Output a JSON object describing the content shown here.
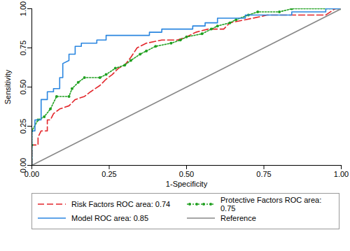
{
  "chart_data": {
    "type": "line",
    "xlabel": "1-Specificity",
    "ylabel": "Sensitivity",
    "xlim": [
      0,
      1
    ],
    "ylim": [
      0,
      1
    ],
    "xticks": [
      {
        "value": 0,
        "label": "0.00"
      },
      {
        "value": 0.25,
        "label": "0.25"
      },
      {
        "value": 0.5,
        "label": "0.50"
      },
      {
        "value": 0.75,
        "label": "0.75"
      },
      {
        "value": 1,
        "label": "1.00"
      }
    ],
    "yticks": [
      {
        "value": 0,
        "label": "0.00"
      },
      {
        "value": 0.25,
        "label": "0.25"
      },
      {
        "value": 0.5,
        "label": "0.50"
      },
      {
        "value": 0.75,
        "label": "0.75"
      },
      {
        "value": 1,
        "label": "1.00"
      }
    ],
    "grid": false,
    "legend": "bottom",
    "series": [
      {
        "name": "Risk Factors ROC area: 0.74",
        "color": "#e3262b",
        "line_style": "dashed",
        "x": [
          0,
          0,
          0.02,
          0.02,
          0.03,
          0.05,
          0.05,
          0.06,
          0.07,
          0.09,
          0.12,
          0.14,
          0.17,
          0.19,
          0.22,
          0.24,
          0.26,
          0.28,
          0.3,
          0.32,
          0.34,
          0.37,
          0.42,
          0.47,
          0.5,
          0.53,
          0.57,
          0.62,
          0.64,
          0.69,
          0.74,
          0.76,
          0.95,
          0.98,
          1
        ],
        "values": [
          0,
          0.13,
          0.13,
          0.18,
          0.22,
          0.22,
          0.29,
          0.29,
          0.33,
          0.36,
          0.38,
          0.42,
          0.44,
          0.47,
          0.51,
          0.55,
          0.58,
          0.62,
          0.64,
          0.69,
          0.75,
          0.78,
          0.8,
          0.8,
          0.82,
          0.85,
          0.87,
          0.87,
          0.91,
          0.93,
          0.95,
          0.96,
          0.96,
          1,
          1
        ]
      },
      {
        "name": "Protective Factors ROC area: 0.75",
        "color": "#20a020",
        "line_style": "dotted",
        "marker": "circle",
        "x": [
          0,
          0,
          0,
          0.02,
          0.04,
          0.06,
          0.08,
          0.12,
          0.13,
          0.15,
          0.17,
          0.22,
          0.24,
          0.27,
          0.3,
          0.32,
          0.35,
          0.37,
          0.4,
          0.45,
          0.48,
          0.5,
          0.55,
          0.58,
          0.6,
          0.64,
          0.66,
          0.7,
          0.73,
          0.8,
          0.84,
          1
        ],
        "values": [
          0,
          0.13,
          0.22,
          0.29,
          0.31,
          0.36,
          0.44,
          0.44,
          0.49,
          0.53,
          0.56,
          0.56,
          0.58,
          0.62,
          0.64,
          0.67,
          0.71,
          0.73,
          0.76,
          0.78,
          0.8,
          0.82,
          0.84,
          0.87,
          0.89,
          0.91,
          0.93,
          0.96,
          0.98,
          0.98,
          1,
          1
        ]
      },
      {
        "name": "Model ROC area: 0.85",
        "color": "#2a86e0",
        "line_style": "solid",
        "x": [
          0,
          0,
          0,
          0.01,
          0.01,
          0.03,
          0.03,
          0.05,
          0.05,
          0.07,
          0.07,
          0.09,
          0.09,
          0.1,
          0.1,
          0.12,
          0.12,
          0.14,
          0.14,
          0.16,
          0.16,
          0.21,
          0.21,
          0.24,
          0.24,
          0.38,
          0.38,
          0.42,
          0.42,
          0.52,
          0.52,
          0.56,
          0.56,
          0.6,
          0.6,
          0.69,
          0.69,
          0.84,
          0.84,
          0.95,
          0.95,
          1
        ],
        "values": [
          0,
          0.15,
          0.22,
          0.22,
          0.29,
          0.29,
          0.42,
          0.42,
          0.47,
          0.47,
          0.49,
          0.49,
          0.56,
          0.56,
          0.65,
          0.67,
          0.71,
          0.71,
          0.76,
          0.76,
          0.78,
          0.78,
          0.8,
          0.8,
          0.83,
          0.83,
          0.85,
          0.85,
          0.87,
          0.87,
          0.89,
          0.89,
          0.91,
          0.91,
          0.94,
          0.94,
          0.96,
          0.96,
          0.98,
          0.98,
          1,
          1
        ]
      },
      {
        "name": "Reference",
        "color": "#888888",
        "line_style": "solid",
        "x": [
          0,
          1
        ],
        "values": [
          0,
          1
        ]
      }
    ]
  }
}
